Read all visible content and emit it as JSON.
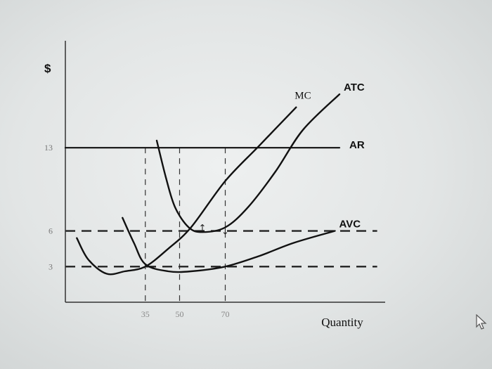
{
  "chart_data": {
    "type": "line",
    "title": "",
    "ylabel": "$",
    "xlabel": "Quantity",
    "xlim": [
      0,
      140
    ],
    "ylim": [
      0,
      22
    ],
    "x_ticks": [
      {
        "value": 35,
        "label": "35"
      },
      {
        "value": 50,
        "label": "50"
      },
      {
        "value": 70,
        "label": "70"
      }
    ],
    "y_ticks": [
      {
        "value": 13,
        "label": "13"
      },
      {
        "value": 6,
        "label": "6"
      },
      {
        "value": 3,
        "label": "3"
      }
    ],
    "series": [
      {
        "name": "MC",
        "x": [
          5,
          10,
          18,
          26,
          35,
          45,
          55,
          70,
          85,
          101
        ],
        "y": [
          5.4,
          3.6,
          2.4,
          2.6,
          3.0,
          4.5,
          6.3,
          10.2,
          13.2,
          16.4
        ]
      },
      {
        "name": "ATC",
        "x": [
          40,
          44,
          48,
          54,
          60,
          70,
          80,
          92,
          104,
          120
        ],
        "y": [
          13.6,
          10.5,
          8.0,
          6.3,
          5.9,
          6.3,
          8.0,
          11.0,
          14.5,
          17.5
        ]
      },
      {
        "name": "AVC",
        "x": [
          25,
          30,
          35,
          45,
          55,
          70,
          85,
          100,
          118
        ],
        "y": [
          7.1,
          5.0,
          3.2,
          2.6,
          2.6,
          3.0,
          3.9,
          5.0,
          6.0
        ]
      },
      {
        "name": "AR",
        "x": [
          0,
          120
        ],
        "y": [
          13,
          13
        ]
      }
    ],
    "reference_lines": {
      "horizontal": [
        6,
        3
      ],
      "vertical": [
        35,
        50,
        70
      ]
    },
    "annotations": [
      {
        "x": 60,
        "y": 6.3,
        "label": "↑"
      },
      {
        "x": 70,
        "y": 6.0,
        "label": "↓"
      }
    ],
    "grid": false
  },
  "cursor": {
    "icon": "mouse-pointer-icon"
  }
}
